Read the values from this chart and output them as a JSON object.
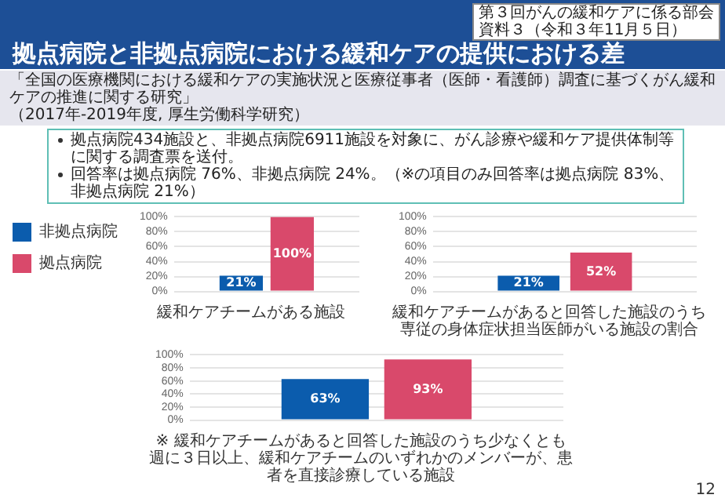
{
  "chart_data": [
    {
      "type": "bar",
      "title": "拠点病院と非拠点病院における緩和ケアの提供における差",
      "xlabel": "緩和ケアチームがある施設",
      "categories": [
        null
      ],
      "series": [
        {
          "name": "非拠点病院",
          "color": "#0b5cad",
          "values": [
            21
          ],
          "value_labels": [
            "21%"
          ]
        },
        {
          "name": "拠点病院",
          "color": "#d9496b",
          "values": [
            100
          ],
          "value_labels": [
            "100%"
          ]
        }
      ],
      "ylim": [
        0,
        100
      ],
      "yticks": [
        {
          "value": 0,
          "label": "0%"
        },
        {
          "value": 20,
          "label": "20%"
        },
        {
          "value": 40,
          "label": "40%"
        },
        {
          "value": 60,
          "label": "60%"
        },
        {
          "value": 80,
          "label": "80%"
        },
        {
          "value": 100,
          "label": "100%"
        }
      ],
      "grid": "y",
      "legend": "left",
      "tick_labels": "y",
      "annotations": [
        "第３回がんの緩和ケアに係る部会",
        "資料３（令和３年11月５日）",
        "「全国の医療機関における緩和ケアの実施状況と医療従事者（医師・看護師）調査に基づくがん緩和ケアの推進に関する研究」",
        "（2017年-2019年度, 厚生労働科学研究）",
        "拠点病院434施設と、非拠点病院6911施設を対象に、がん診療や緩和ケア提供体制等に関する調査票を送付。",
        "回答率は拠点病院 76%、非拠点病院 24%。（※の項目のみ回答率は拠点病院 83%、非拠点病院 21%）",
        "12"
      ]
    },
    {
      "type": "bar",
      "xlabel": "緩和ケアチームがあると回答した施設のうち専従の身体症状担当医師がいる施設の割合",
      "categories": [
        null
      ],
      "series": [
        {
          "color": "#0b5cad",
          "values": [
            21
          ],
          "value_labels": [
            "21%"
          ]
        },
        {
          "color": "#d9496b",
          "values": [
            52
          ],
          "value_labels": [
            "52%"
          ]
        }
      ],
      "ylim": [
        0,
        100
      ],
      "yticks": [
        {
          "value": 0,
          "label": "0%"
        },
        {
          "value": 20,
          "label": "20%"
        },
        {
          "value": 40,
          "label": "40%"
        },
        {
          "value": 60,
          "label": "60%"
        },
        {
          "value": 80,
          "label": "80%"
        },
        {
          "value": 100,
          "label": "100%"
        }
      ],
      "grid": "y",
      "tick_labels": "y"
    },
    {
      "type": "bar",
      "xlabel": "※ 緩和ケアチームがあると回答した施設のうち少なくとも週に３日以上、緩和ケアチームのいずれかのメンバーが、患者を直接診療している施設",
      "categories": [
        null
      ],
      "series": [
        {
          "color": "#0b5cad",
          "values": [
            63
          ],
          "value_labels": [
            "63%"
          ]
        },
        {
          "color": "#d9496b",
          "values": [
            93
          ],
          "value_labels": [
            "93%"
          ]
        }
      ],
      "ylim": [
        0,
        100
      ],
      "yticks": [
        {
          "value": 0,
          "label": "0%"
        },
        {
          "value": 20,
          "label": "20%"
        },
        {
          "value": 40,
          "label": "40%"
        },
        {
          "value": 60,
          "label": "60%"
        },
        {
          "value": 80,
          "label": "80%"
        },
        {
          "value": 100,
          "label": "100%"
        }
      ],
      "grid": "y",
      "tick_labels": "y"
    }
  ]
}
